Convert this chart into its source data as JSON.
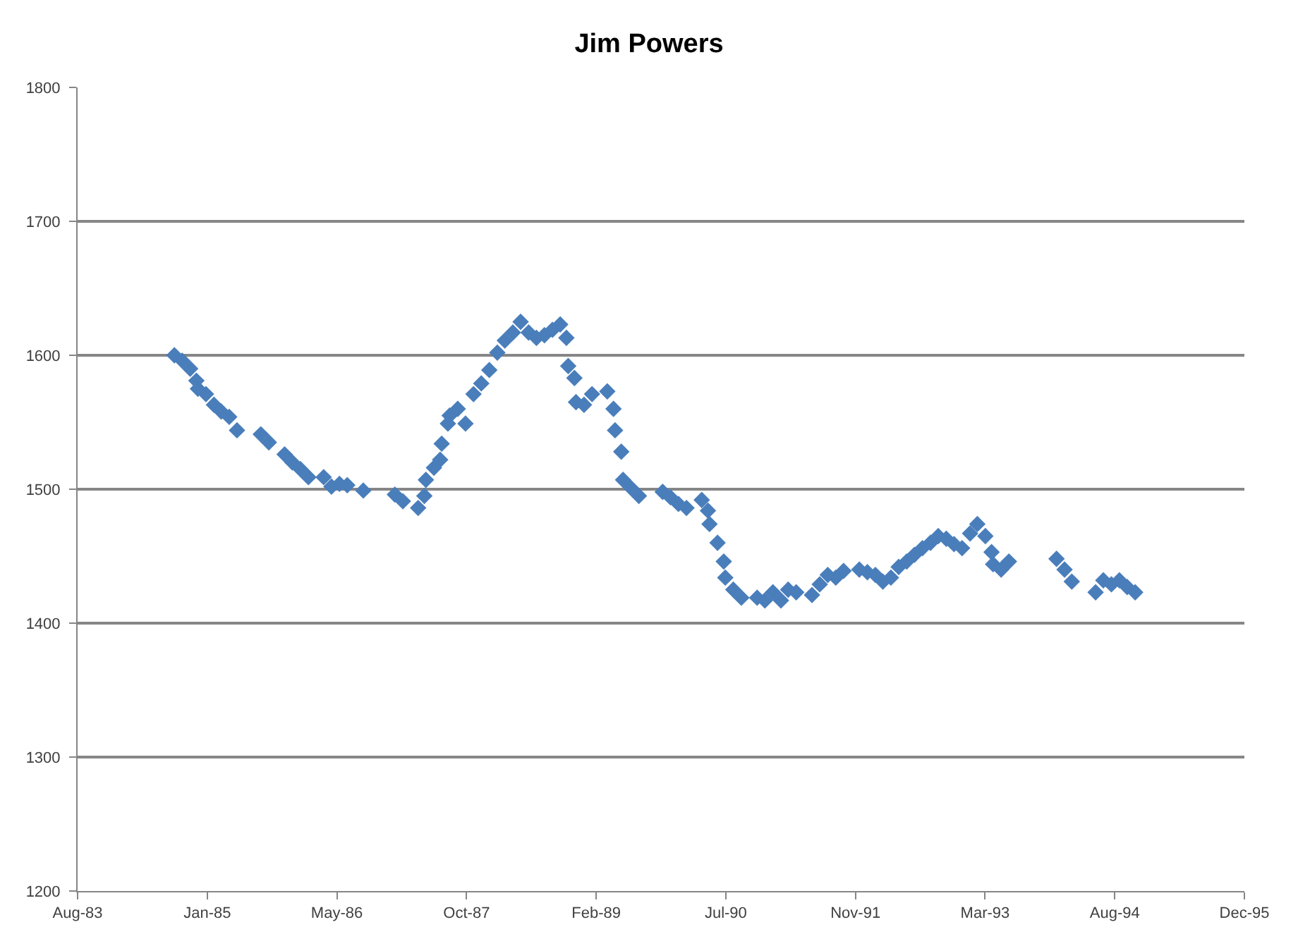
{
  "chart_data": {
    "type": "scatter",
    "title": "Jim Powers",
    "marker": "diamond",
    "grid": "y",
    "x": [
      "1984-09",
      "1984-10",
      "1984-11",
      "1984-11-25",
      "1984-12",
      "1985-01",
      "1985-02",
      "1985-03",
      "1985-04",
      "1985-05",
      "1985-08",
      "1985-09",
      "1985-11",
      "1985-12",
      "1986-01",
      "1986-02",
      "1986-04",
      "1986-05",
      "1986-06",
      "1986-07",
      "1986-09",
      "1987-01",
      "1987-02",
      "1987-04",
      "1987-04-25",
      "1987-05",
      "1987-06",
      "1987-06-25",
      "1987-07",
      "1987-07-25",
      "1987-08",
      "1987-09",
      "1987-10",
      "1987-11",
      "1987-12",
      "1988-01",
      "1988-02",
      "1988-03",
      "1988-04",
      "1988-05",
      "1988-06",
      "1988-07",
      "1988-08",
      "1988-09",
      "1988-10",
      "1988-10-25",
      "1988-11",
      "1988-11-25",
      "1988-12",
      "1989-01",
      "1989-02",
      "1989-04",
      "1989-04-25",
      "1989-05",
      "1989-05-25",
      "1989-06",
      "1989-07",
      "1989-08",
      "1989-11",
      "1989-12",
      "1990-01",
      "1990-02",
      "1990-04",
      "1990-04-25",
      "1990-05",
      "1990-06",
      "1990-06-25",
      "1990-07",
      "1990-08",
      "1990-09",
      "1990-11",
      "1990-12",
      "1991-01",
      "1991-02",
      "1991-03",
      "1991-04",
      "1991-06",
      "1991-07",
      "1991-08",
      "1991-09",
      "1991-10",
      "1991-12",
      "1992-01",
      "1992-02",
      "1992-03",
      "1992-04",
      "1992-05",
      "1992-06",
      "1992-07",
      "1992-08",
      "1992-09",
      "1992-10",
      "1992-11",
      "1992-12",
      "1993-01",
      "1993-02",
      "1993-03",
      "1993-04",
      "1993-04-25",
      "1993-05",
      "1993-06",
      "1993-07",
      "1994-01",
      "1994-02",
      "1994-03",
      "1994-06",
      "1994-07",
      "1994-08",
      "1994-09",
      "1994-10",
      "1994-11"
    ],
    "values": [
      1600,
      1596,
      1590,
      1581,
      1575,
      1571,
      1563,
      1558,
      1554,
      1544,
      1541,
      1535,
      1526,
      1520,
      1515,
      1509,
      1509,
      1502,
      1504,
      1503,
      1499,
      1496,
      1491,
      1486,
      1495,
      1507,
      1516,
      1522,
      1534,
      1549,
      1555,
      1560,
      1549,
      1571,
      1579,
      1589,
      1602,
      1611,
      1617,
      1625,
      1617,
      1613,
      1615,
      1619,
      1623,
      1613,
      1592,
      1583,
      1565,
      1563,
      1571,
      1573,
      1560,
      1544,
      1528,
      1507,
      1501,
      1495,
      1498,
      1494,
      1489,
      1486,
      1492,
      1484,
      1474,
      1460,
      1446,
      1434,
      1425,
      1419,
      1419,
      1417,
      1423,
      1417,
      1425,
      1423,
      1421,
      1429,
      1436,
      1434,
      1439,
      1440,
      1438,
      1436,
      1431,
      1434,
      1442,
      1446,
      1451,
      1456,
      1460,
      1465,
      1463,
      1459,
      1456,
      1467,
      1474,
      1465,
      1453,
      1444,
      1440,
      1446,
      1448,
      1440,
      1431,
      1423,
      1432,
      1429,
      1432,
      1427,
      1423
    ],
    "color": "#4a7ebb",
    "xlim": [
      "1983-08-24",
      "1995-12-28"
    ],
    "xticks": [
      {
        "value": "1983-08-24",
        "label": "Aug-83"
      },
      {
        "value": "1985-01-06",
        "label": "Jan-85"
      },
      {
        "value": "1986-05-22",
        "label": "May-86"
      },
      {
        "value": "1987-10-05",
        "label": "Oct-87"
      },
      {
        "value": "1989-02-17",
        "label": "Feb-89"
      },
      {
        "value": "1990-07-03",
        "label": "Jul-90"
      },
      {
        "value": "1991-11-16",
        "label": "Nov-91"
      },
      {
        "value": "1993-03-31",
        "label": "Mar-93"
      },
      {
        "value": "1994-08-14",
        "label": "Aug-94"
      },
      {
        "value": "1995-12-28",
        "label": "Dec-95"
      }
    ],
    "ylim": [
      1200,
      1800
    ],
    "yticks": [
      1200,
      1300,
      1400,
      1500,
      1600,
      1700,
      1800
    ]
  }
}
